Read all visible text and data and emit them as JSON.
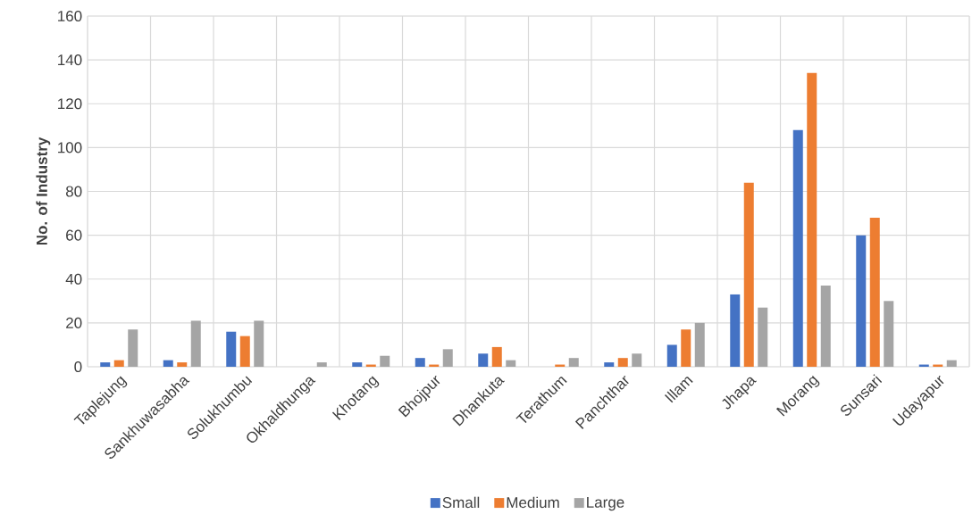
{
  "chart_data": {
    "type": "bar",
    "ylabel": "No. of Industry",
    "categories": [
      "Taplejung",
      "Sankhuwasabha",
      "Solukhumbu",
      "Okhaldhunga",
      "Khotang",
      "Bhojpur",
      "Dhankuta",
      "Terathum",
      "Panchthar",
      "Illam",
      "Jhapa",
      "Morang",
      "Sunsari",
      "Udayapur"
    ],
    "series": [
      {
        "name": "Small",
        "color": "#4472c4",
        "values": [
          2,
          3,
          16,
          0,
          2,
          4,
          6,
          0,
          2,
          10,
          33,
          108,
          60,
          1
        ]
      },
      {
        "name": "Medium",
        "color": "#ed7d31",
        "values": [
          3,
          2,
          14,
          0,
          1,
          1,
          9,
          1,
          4,
          17,
          84,
          134,
          68,
          1
        ]
      },
      {
        "name": "Large",
        "color": "#a5a5a5",
        "values": [
          17,
          21,
          21,
          2,
          5,
          8,
          3,
          4,
          6,
          20,
          27,
          37,
          30,
          3
        ]
      }
    ],
    "ylim": [
      0,
      160
    ],
    "yticks": [
      0,
      20,
      40,
      60,
      80,
      100,
      120,
      140,
      160
    ],
    "grid": true,
    "legend": "bottom"
  }
}
